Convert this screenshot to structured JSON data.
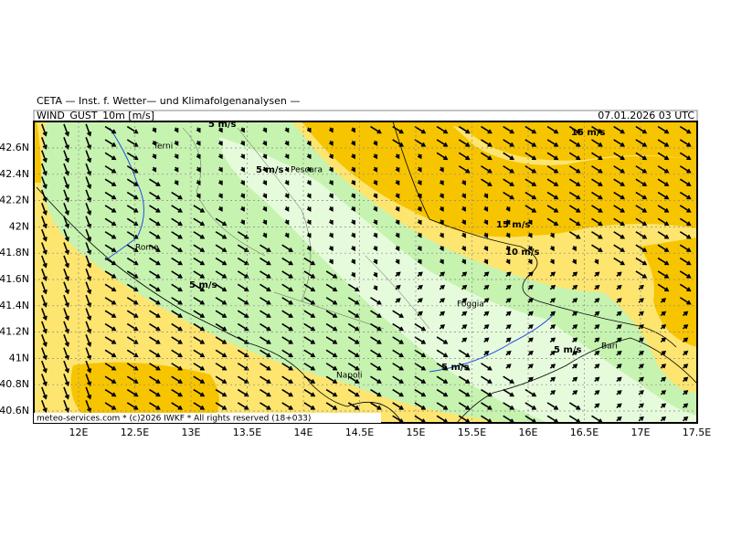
{
  "header": {
    "title": "CETA — Inst. f. Wetter— und Klimafolgenanalysen —",
    "field": "WIND_GUST_10m [m/s]",
    "valid_time": "07.01.2026 03 UTC"
  },
  "footer": "meteo-services.com * (c)2026 IWKF * All rights reserved (18+033)",
  "map": {
    "lat_labels": [
      "42.6N",
      "42.4N",
      "42.2N",
      "42N",
      "41.8N",
      "41.6N",
      "41.4N",
      "41.2N",
      "41N",
      "40.8N",
      "40.6N"
    ],
    "lon_labels": [
      "12E",
      "12.5E",
      "13E",
      "13.5E",
      "14E",
      "14.5E",
      "15E",
      "15.5E",
      "16E",
      "16.5E",
      "17E",
      "17.5E"
    ],
    "cities": [
      "Terni",
      "Pescara",
      "Rome",
      "Napoli",
      "Foggia",
      "Bari"
    ],
    "contour_labels": [
      "5 m/s",
      "15 m/s",
      "5 m/s",
      "15 m/s",
      "10 m/s",
      "5 m/s",
      "5 m/s",
      "5 m/s"
    ]
  }
}
